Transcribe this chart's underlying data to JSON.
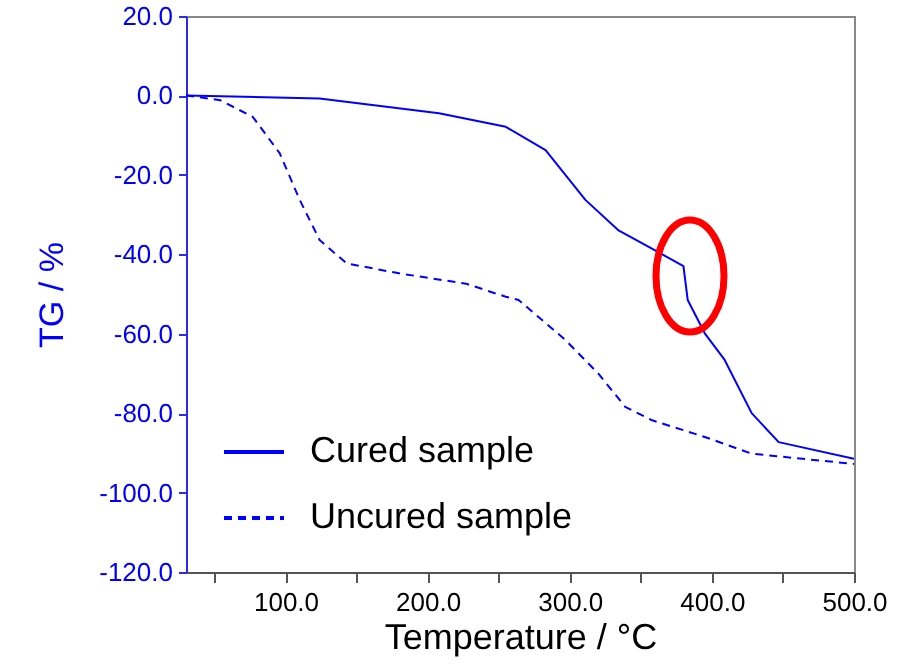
{
  "chart_data": {
    "type": "line",
    "xlabel": "Temperature / °C",
    "ylabel": "TG / %",
    "xlim": [
      30,
      500
    ],
    "xticks": [
      {
        "value": 50,
        "label": null
      },
      {
        "value": 100,
        "label": "100.0"
      },
      {
        "value": 150,
        "label": null
      },
      {
        "value": 200,
        "label": "200.0"
      },
      {
        "value": 250,
        "label": null
      },
      {
        "value": 300,
        "label": "300.0"
      },
      {
        "value": 350,
        "label": null
      },
      {
        "value": 400,
        "label": "400.0"
      },
      {
        "value": 450,
        "label": null
      },
      {
        "value": 500,
        "label": "500.0"
      }
    ],
    "ylim": [
      -120,
      20
    ],
    "yticks": [
      {
        "value": -120,
        "label": "-120.0"
      },
      {
        "value": -100,
        "label": "-100.0"
      },
      {
        "value": -80,
        "label": "-80.0"
      },
      {
        "value": -60,
        "label": "-60.0"
      },
      {
        "value": -40,
        "label": "-40.0"
      },
      {
        "value": -20,
        "label": "-20.0"
      },
      {
        "value": 0,
        "label": "0.0"
      },
      {
        "value": 20,
        "label": "20.0"
      }
    ],
    "legend": "bottom left",
    "grid": false,
    "series": [
      {
        "name": "Cured sample",
        "color": "#0000ff",
        "line_style": "solid",
        "x": [
          30,
          124,
          208,
          255,
          283,
          311,
          334,
          362,
          380,
          383,
          395,
          409,
          428,
          447,
          500
        ],
        "values": [
          0,
          -0.8,
          -4.5,
          -7.9,
          -13.8,
          -26.3,
          -33.9,
          -39.4,
          -43,
          -51.5,
          -59.9,
          -66.6,
          -80,
          -87.3,
          -91.5
        ]
      },
      {
        "name": "Uncured sample",
        "color": "#0000ff",
        "line_style": "dashed",
        "x": [
          30,
          54,
          77,
          96,
          110,
          124,
          143,
          180,
          227,
          255,
          264,
          297,
          320,
          339,
          358,
          395,
          428,
          500
        ],
        "values": [
          0,
          -1.2,
          -5.4,
          -14.6,
          -26.3,
          -36.4,
          -42.3,
          -44.8,
          -47.4,
          -50.7,
          -51.5,
          -61.6,
          -70,
          -78.4,
          -81.8,
          -86,
          -90.2,
          -92.8
        ]
      }
    ]
  }
}
